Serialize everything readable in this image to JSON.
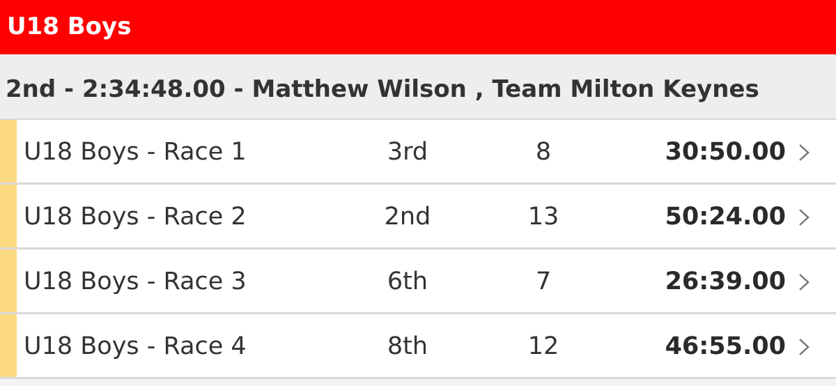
{
  "category": {
    "title": "U18 Boys",
    "accent_color": "#ff0000"
  },
  "summary": {
    "text": "2nd - 2:34:48.00 - Matthew Wilson , Team Milton Keynes"
  },
  "races": [
    {
      "name": "U18 Boys - Race 1",
      "position": "3rd",
      "number": "8",
      "time": "30:50.00"
    },
    {
      "name": "U18 Boys - Race 2",
      "position": "2nd",
      "number": "13",
      "time": "50:24.00"
    },
    {
      "name": "U18 Boys - Race 3",
      "position": "6th",
      "number": "7",
      "time": "26:39.00"
    },
    {
      "name": "U18 Boys - Race 4",
      "position": "8th",
      "number": "12",
      "time": "46:55.00"
    }
  ],
  "icons": {
    "row_chevron": "chevron-right-icon"
  },
  "colors": {
    "row_accent": "#fddb82"
  }
}
